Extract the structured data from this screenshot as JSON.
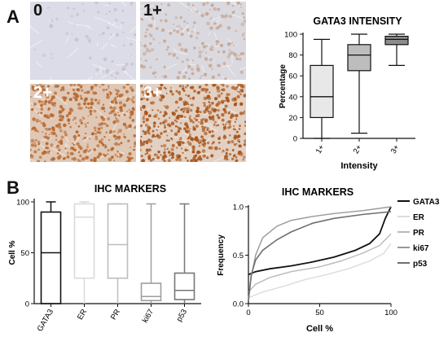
{
  "panel_a": {
    "letter": "A",
    "micrographs": [
      {
        "label": "0",
        "bg": "#dcdce8",
        "nuclei": "#c9c2cc",
        "label_color": "#111111",
        "density": 0
      },
      {
        "label": "1+",
        "bg": "#dad9e0",
        "nuclei": "#c8a894",
        "label_color": "#111111",
        "density": 0.25
      },
      {
        "label": "2+",
        "bg": "#e0c8b6",
        "nuclei": "#b8692f",
        "label_color": "#ffffff",
        "density": 0.7
      },
      {
        "label": "3+",
        "bg": "#e2d0c2",
        "nuclei": "#a9561b",
        "label_color": "#ffffff",
        "density": 0.85
      }
    ]
  },
  "panel_b": {
    "letter": "B"
  },
  "chart_data": [
    {
      "type": "box",
      "title": "GATA3 INTENSITY",
      "xlabel": "Intensity",
      "ylabel": "Percentage",
      "ylim": [
        0,
        100
      ],
      "yticks": [
        0,
        20,
        40,
        60,
        80,
        100
      ],
      "grid": false,
      "categories": [
        "1+",
        "2+",
        "3+"
      ],
      "boxes": [
        {
          "min": 0,
          "q1": 20,
          "median": 40,
          "q3": 70,
          "max": 95,
          "fill": "#e8e8e8"
        },
        {
          "min": 5,
          "q1": 65,
          "median": 80,
          "q3": 90,
          "max": 100,
          "fill": "#bdbdbd"
        },
        {
          "min": 70,
          "q1": 90,
          "median": 95,
          "q3": 98,
          "max": 100,
          "fill": "#8c8c8c"
        }
      ]
    },
    {
      "type": "box",
      "title": "IHC MARKERS",
      "xlabel": "",
      "ylabel": "Cell %",
      "ylim": [
        0,
        100
      ],
      "yticks": [
        0,
        50,
        100
      ],
      "grid": false,
      "categories": [
        "GATA3",
        "ER",
        "PR",
        "ki67",
        "p53"
      ],
      "boxes": [
        {
          "min": 0,
          "q1": 0,
          "median": 50,
          "q3": 90,
          "max": 100,
          "stroke": "#111111"
        },
        {
          "min": 0,
          "q1": 25,
          "median": 85,
          "q3": 98,
          "max": 100,
          "stroke": "#d9d9d9"
        },
        {
          "min": 0,
          "q1": 25,
          "median": 58,
          "q3": 98,
          "max": 98,
          "stroke": "#bdbdbd"
        },
        {
          "min": 0,
          "q1": 3,
          "median": 7,
          "q3": 20,
          "max": 98,
          "stroke": "#9e9e9e"
        },
        {
          "min": 0,
          "q1": 4,
          "median": 13,
          "q3": 30,
          "max": 98,
          "stroke": "#777777"
        }
      ]
    },
    {
      "type": "line",
      "title": "IHC MARKERS",
      "xlabel": "Cell %",
      "ylabel": "Frequency",
      "xlim": [
        0,
        100
      ],
      "ylim": [
        0,
        1
      ],
      "xticks": [
        0,
        50,
        100
      ],
      "yticks": [
        0,
        0.5,
        1.0
      ],
      "ytick_labels": [
        "0.0",
        "0.5",
        "1.0"
      ],
      "grid": false,
      "legend_position": "right",
      "series": [
        {
          "name": "GATA3",
          "color": "#111111",
          "width": 1.8,
          "points": [
            [
              0,
              0.3
            ],
            [
              5,
              0.33
            ],
            [
              15,
              0.36
            ],
            [
              30,
              0.39
            ],
            [
              45,
              0.43
            ],
            [
              60,
              0.48
            ],
            [
              75,
              0.55
            ],
            [
              85,
              0.62
            ],
            [
              92,
              0.72
            ],
            [
              96,
              0.88
            ],
            [
              100,
              1.0
            ]
          ]
        },
        {
          "name": "ER",
          "color": "#dcdcdc",
          "width": 1.4,
          "points": [
            [
              0,
              0.06
            ],
            [
              10,
              0.12
            ],
            [
              25,
              0.18
            ],
            [
              40,
              0.25
            ],
            [
              55,
              0.3
            ],
            [
              70,
              0.36
            ],
            [
              85,
              0.44
            ],
            [
              95,
              0.52
            ],
            [
              100,
              0.62
            ]
          ]
        },
        {
          "name": "PR",
          "color": "#b8b8b8",
          "width": 1.4,
          "points": [
            [
              0,
              0.12
            ],
            [
              5,
              0.2
            ],
            [
              15,
              0.27
            ],
            [
              30,
              0.33
            ],
            [
              50,
              0.38
            ],
            [
              65,
              0.44
            ],
            [
              80,
              0.52
            ],
            [
              92,
              0.6
            ],
            [
              100,
              0.72
            ]
          ]
        },
        {
          "name": "ki67",
          "color": "#999999",
          "width": 1.4,
          "points": [
            [
              0,
              0.05
            ],
            [
              2,
              0.28
            ],
            [
              5,
              0.5
            ],
            [
              10,
              0.68
            ],
            [
              20,
              0.8
            ],
            [
              30,
              0.86
            ],
            [
              45,
              0.9
            ],
            [
              60,
              0.93
            ],
            [
              80,
              0.96
            ],
            [
              100,
              1.0
            ]
          ]
        },
        {
          "name": "p53",
          "color": "#6f6f6f",
          "width": 1.6,
          "points": [
            [
              0,
              0.03
            ],
            [
              2,
              0.3
            ],
            [
              5,
              0.45
            ],
            [
              10,
              0.55
            ],
            [
              20,
              0.66
            ],
            [
              30,
              0.74
            ],
            [
              45,
              0.83
            ],
            [
              60,
              0.88
            ],
            [
              80,
              0.92
            ],
            [
              100,
              0.95
            ]
          ]
        }
      ]
    }
  ]
}
